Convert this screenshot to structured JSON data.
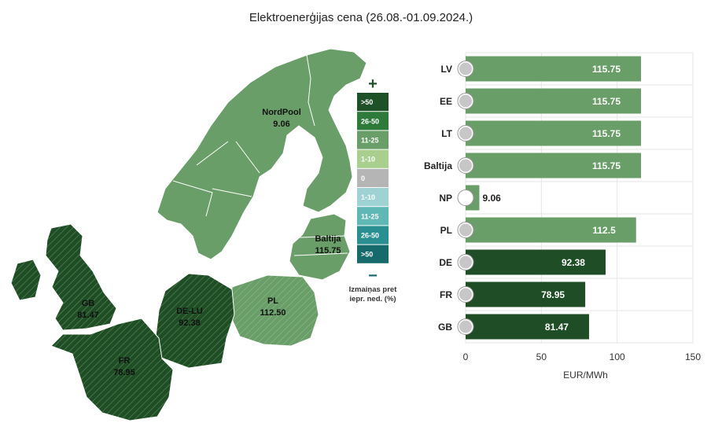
{
  "title": "Elektroenerģijas cena (26.08.-01.09.2024.)",
  "map": {
    "regions": [
      {
        "id": "nordpool",
        "name": "NordPool",
        "value": "9.06",
        "color": "#6a9e68"
      },
      {
        "id": "baltija",
        "name": "Baltija",
        "value": "115.75",
        "color": "#6a9e68"
      },
      {
        "id": "pl",
        "name": "PL",
        "value": "112.50",
        "color": "#6a9e68"
      },
      {
        "id": "gb",
        "name": "GB",
        "value": "81.47",
        "color": "#1f4d25"
      },
      {
        "id": "delu",
        "name": "DE-LU",
        "value": "92.38",
        "color": "#1f4d25"
      },
      {
        "id": "fr",
        "name": "FR",
        "value": "78.95",
        "color": "#1f4d25"
      }
    ]
  },
  "legend": {
    "plus": "+",
    "minus": "−",
    "caption_lines": [
      "Izmaiņas pret",
      "iepr. ned. (%)"
    ],
    "items": [
      {
        "label": ">50",
        "color": "#1e5128"
      },
      {
        "label": "26-50",
        "color": "#2e7a3a"
      },
      {
        "label": "11-25",
        "color": "#6a9e68"
      },
      {
        "label": "1-10",
        "color": "#a8cf8e"
      },
      {
        "label": "0",
        "color": "#b5b5b5"
      },
      {
        "label": "1-10",
        "color": "#9fd3d3"
      },
      {
        "label": "11-25",
        "color": "#5fb8b6"
      },
      {
        "label": "26-50",
        "color": "#2a8f90"
      },
      {
        "label": ">50",
        "color": "#176a6c"
      }
    ]
  },
  "chart_data": {
    "type": "bar",
    "orientation": "horizontal",
    "categories": [
      "LV",
      "EE",
      "LT",
      "Baltija",
      "NP",
      "PL",
      "DE",
      "FR",
      "GB"
    ],
    "values": [
      115.75,
      115.75,
      115.75,
      115.75,
      9.06,
      112.5,
      92.38,
      78.95,
      81.47
    ],
    "data_labels": [
      "115.75",
      "115.75",
      "115.75",
      "115.75",
      "9.06",
      "112.5",
      "92.38",
      "78.95",
      "81.47"
    ],
    "colors": [
      "#6a9e68",
      "#6a9e68",
      "#6a9e68",
      "#6a9e68",
      "#6a9e68",
      "#6a9e68",
      "#1f4d25",
      "#1f4d25",
      "#1f4d25"
    ],
    "xlim": [
      0,
      150
    ],
    "xticks": [
      0,
      50,
      100,
      150
    ],
    "xlabel": "EUR/MWh",
    "grid": true
  }
}
